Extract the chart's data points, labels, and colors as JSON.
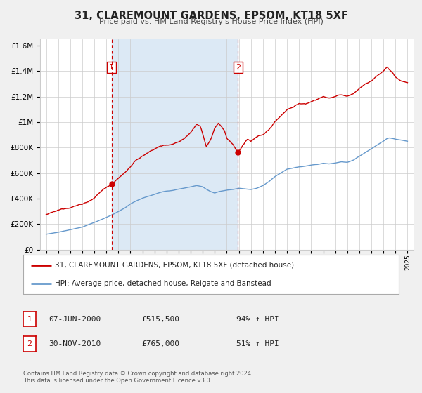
{
  "title": "31, CLAREMOUNT GARDENS, EPSOM, KT18 5XF",
  "subtitle": "Price paid vs. HM Land Registry's House Price Index (HPI)",
  "background_color": "#f0f0f0",
  "plot_bg_color": "#ffffff",
  "shaded_region": [
    2000.44,
    2010.92
  ],
  "shaded_color": "#dce9f5",
  "sale1_x": 2000.44,
  "sale1_y": 515500,
  "sale2_x": 2010.92,
  "sale2_y": 765000,
  "marker_color": "#cc0000",
  "dashed_line_color": "#cc0000",
  "legend_line1_label": "31, CLAREMOUNT GARDENS, EPSOM, KT18 5XF (detached house)",
  "legend_line2_label": "HPI: Average price, detached house, Reigate and Banstead",
  "table_row1": [
    "1",
    "07-JUN-2000",
    "£515,500",
    "94% ↑ HPI"
  ],
  "table_row2": [
    "2",
    "30-NOV-2010",
    "£765,000",
    "51% ↑ HPI"
  ],
  "footer": "Contains HM Land Registry data © Crown copyright and database right 2024.\nThis data is licensed under the Open Government Licence v3.0.",
  "ylim": [
    0,
    1650000
  ],
  "xlim": [
    1994.5,
    2025.5
  ],
  "red_line_color": "#cc0000",
  "blue_line_color": "#6699cc",
  "grid_color": "#cccccc",
  "box_label_color": "#cc0000"
}
